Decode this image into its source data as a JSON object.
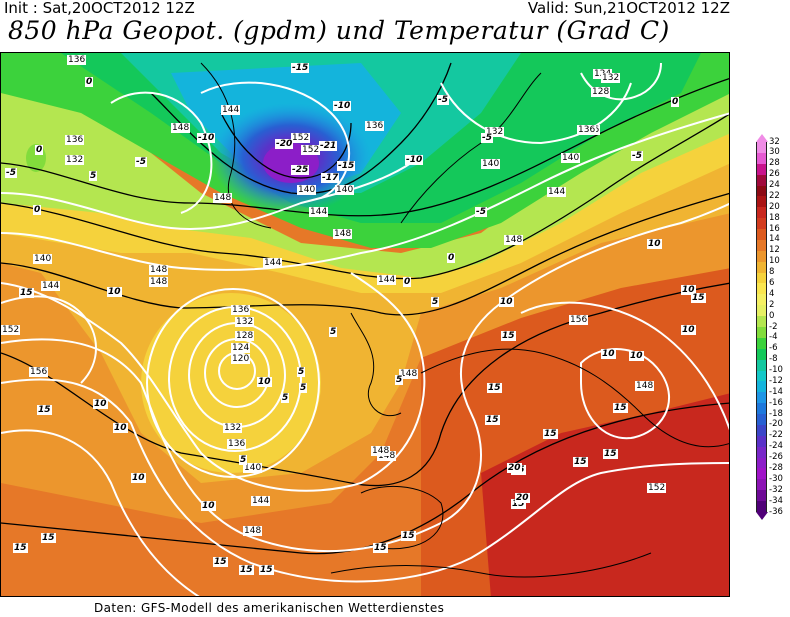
{
  "header": {
    "init": "Init : Sat,20OCT2012 12Z",
    "valid": "Valid: Sun,21OCT2012 12Z",
    "title": "850 hPa Geopot. (gpdm) und Temperatur (Grad C)"
  },
  "footer": {
    "credit": "Daten: GFS-Modell des amerikanischen Wetterdienstes"
  },
  "legend": {
    "labels": [
      "32",
      "30",
      "28",
      "26",
      "24",
      "22",
      "20",
      "18",
      "16",
      "14",
      "12",
      "10",
      "8",
      "6",
      "4",
      "2",
      "0",
      "-2",
      "-4",
      "-6",
      "-8",
      "-10",
      "-12",
      "-14",
      "-16",
      "-18",
      "-20",
      "-22",
      "-24",
      "-26",
      "-28",
      "-30",
      "-32",
      "-34",
      "-36"
    ],
    "colors": [
      "#f08ce6",
      "#e65ad2",
      "#c8148c",
      "#a00a3c",
      "#8c0a14",
      "#aa1414",
      "#c8281e",
      "#d23c1e",
      "#dc5a1e",
      "#e67828",
      "#ec962d",
      "#f0b432",
      "#f5d23c",
      "#fae650",
      "#f5f064",
      "#e6f064",
      "#b4e650",
      "#82dc3c",
      "#3cd23c",
      "#14c85a",
      "#14c8a0",
      "#14c8c8",
      "#14b4dc",
      "#1e96e6",
      "#1e78dc",
      "#2860d2",
      "#3c46c8",
      "#5a32c8",
      "#7828c8",
      "#8c1ec8",
      "#a014c8",
      "#8c14b4",
      "#6e0a96",
      "#500078"
    ]
  },
  "map": {
    "geopotential_labels": [
      {
        "text": "136"
      },
      {
        "text": "132"
      },
      {
        "text": "136"
      },
      {
        "text": "140"
      },
      {
        "text": "144"
      },
      {
        "text": "148"
      },
      {
        "text": "152"
      },
      {
        "text": "156"
      },
      {
        "text": "148"
      },
      {
        "text": "144"
      },
      {
        "text": "152"
      },
      {
        "text": "140"
      },
      {
        "text": "136"
      },
      {
        "text": "132"
      },
      {
        "text": "128"
      },
      {
        "text": "124"
      },
      {
        "text": "120"
      },
      {
        "text": "132"
      },
      {
        "text": "136"
      },
      {
        "text": "140"
      },
      {
        "text": "144"
      },
      {
        "text": "148"
      },
      {
        "text": "152"
      },
      {
        "text": "148"
      },
      {
        "text": "148"
      },
      {
        "text": "148"
      },
      {
        "text": "144"
      },
      {
        "text": "148"
      },
      {
        "text": "152"
      },
      {
        "text": "148"
      },
      {
        "text": "140"
      },
      {
        "text": "136"
      },
      {
        "text": "144"
      },
      {
        "text": "140"
      },
      {
        "text": "144"
      },
      {
        "text": "136"
      },
      {
        "text": "132"
      },
      {
        "text": "128"
      },
      {
        "text": "124"
      },
      {
        "text": "132"
      },
      {
        "text": "136"
      },
      {
        "text": "140"
      },
      {
        "text": "144"
      },
      {
        "text": "148"
      },
      {
        "text": "156"
      },
      {
        "text": "148"
      },
      {
        "text": "152"
      },
      {
        "text": "148"
      }
    ],
    "temperature_labels": [
      {
        "text": "0"
      },
      {
        "text": "5"
      },
      {
        "text": "-5"
      },
      {
        "text": "-10"
      },
      {
        "text": "-15"
      },
      {
        "text": "-20"
      },
      {
        "text": "-25"
      },
      {
        "text": "-21"
      },
      {
        "text": "-10"
      },
      {
        "text": "-15"
      },
      {
        "text": "-17"
      },
      {
        "text": "-10"
      },
      {
        "text": "-5"
      },
      {
        "text": "-5"
      },
      {
        "text": "-5"
      },
      {
        "text": "-5"
      },
      {
        "text": "0"
      },
      {
        "text": "0"
      },
      {
        "text": "0"
      },
      {
        "text": "5"
      },
      {
        "text": "5"
      },
      {
        "text": "5"
      },
      {
        "text": "10"
      },
      {
        "text": "10"
      },
      {
        "text": "10"
      },
      {
        "text": "10"
      },
      {
        "text": "15"
      },
      {
        "text": "15"
      },
      {
        "text": "15"
      },
      {
        "text": "15"
      },
      {
        "text": "15"
      },
      {
        "text": "15"
      },
      {
        "text": "15"
      },
      {
        "text": "15"
      },
      {
        "text": "15"
      },
      {
        "text": "15"
      },
      {
        "text": "15"
      },
      {
        "text": "20"
      },
      {
        "text": "20"
      },
      {
        "text": "15"
      },
      {
        "text": "10"
      },
      {
        "text": "10"
      },
      {
        "text": "10"
      },
      {
        "text": "5"
      },
      {
        "text": "5"
      },
      {
        "text": "5"
      },
      {
        "text": "15"
      },
      {
        "text": "15"
      },
      {
        "text": "10"
      },
      {
        "text": "15"
      },
      {
        "text": "15"
      },
      {
        "text": "10"
      },
      {
        "text": "15"
      },
      {
        "text": "15"
      },
      {
        "text": "10"
      },
      {
        "text": "0"
      },
      {
        "text": "-5"
      },
      {
        "text": "0"
      },
      {
        "text": "5"
      },
      {
        "text": "10"
      },
      {
        "text": "15"
      },
      {
        "text": "10"
      }
    ]
  }
}
